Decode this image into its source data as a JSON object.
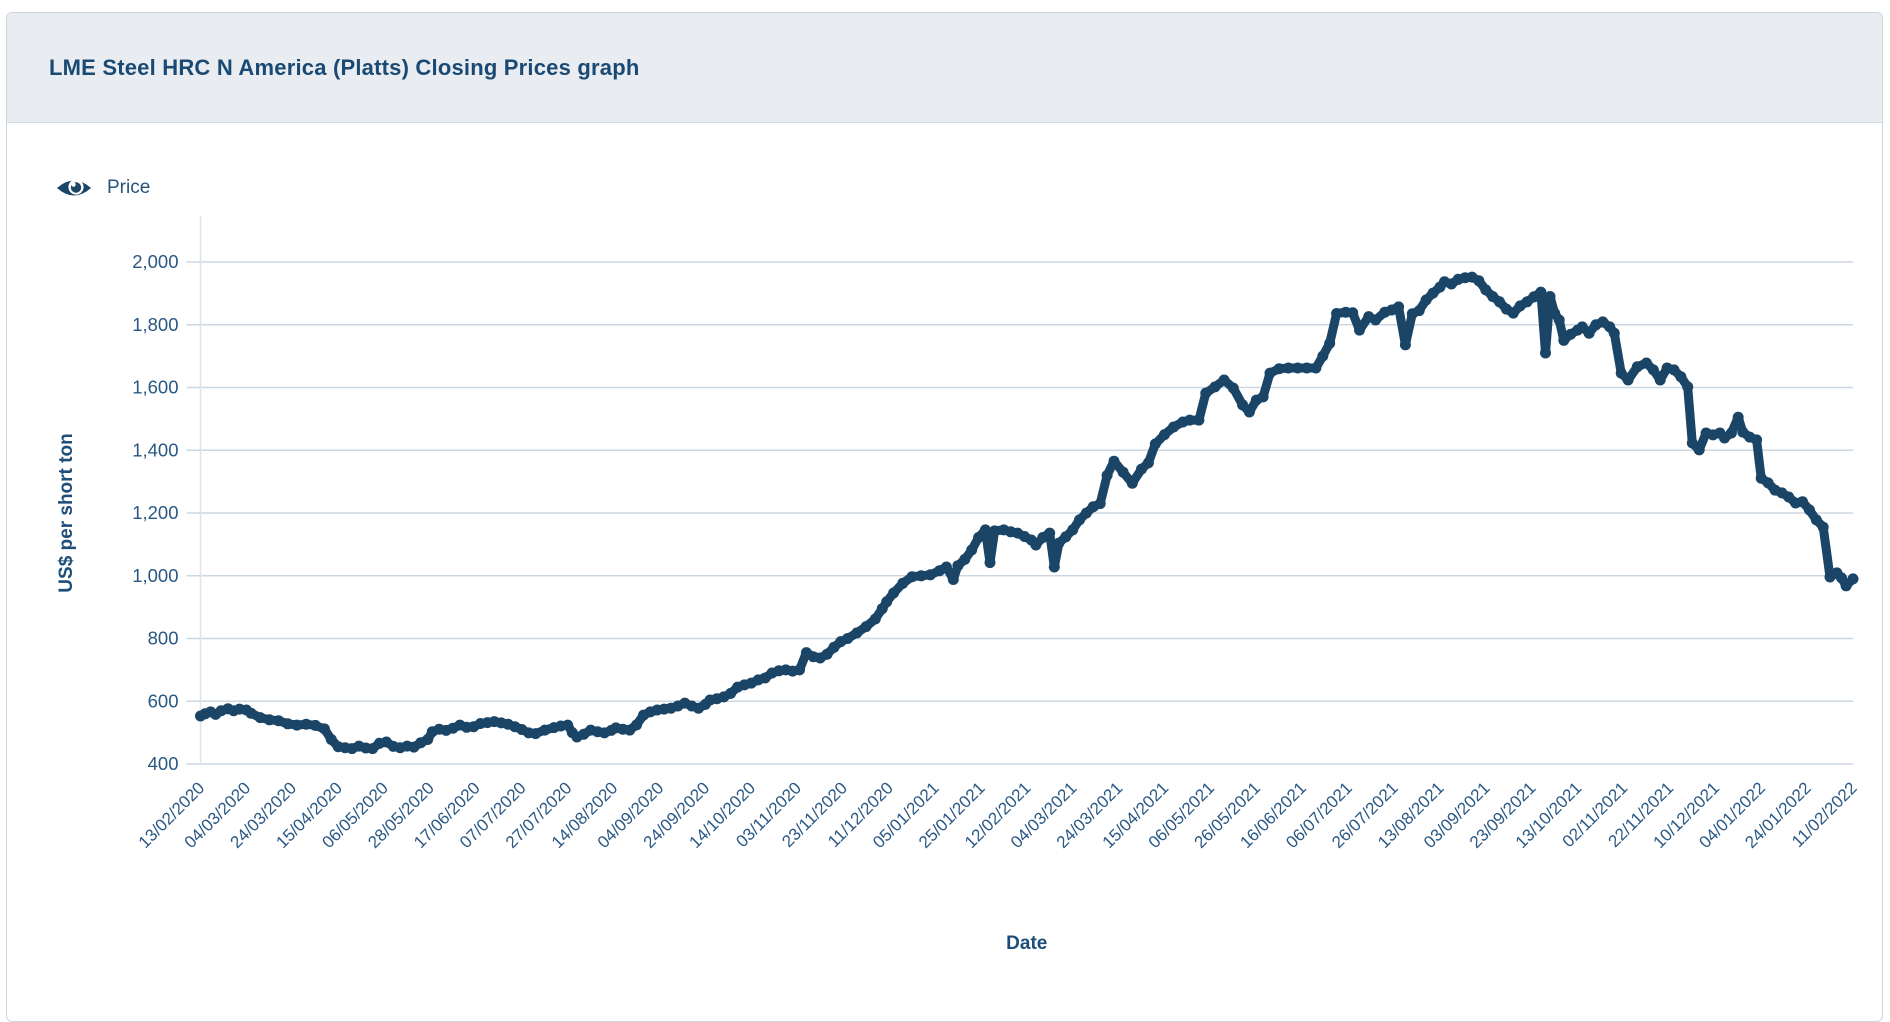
{
  "header": {
    "title": "LME Steel HRC N America (Platts) Closing Prices graph"
  },
  "legend": {
    "items": [
      {
        "label": "Price",
        "icon": "eye-icon",
        "visible": true
      }
    ]
  },
  "colors": {
    "series": "#1b4567",
    "title": "#1a4a73",
    "tick_label": "#2a5884",
    "axis_title": "#1d4d78",
    "legend_text": "#27547e",
    "gridline": "#cdd7e1",
    "axis_line": "#e2e4e6",
    "header_bg": "#e9edf1",
    "panel_border": "#ccd6df"
  },
  "chart_data": {
    "type": "line",
    "title": "LME Steel HRC N America (Platts) Closing Prices",
    "xlabel": "Date",
    "ylabel": "US$ per short ton",
    "ylim": [
      400,
      2000
    ],
    "x_range": [
      0,
      36
    ],
    "grid": "horizontal",
    "legend_position": "top-left",
    "y_ticks": [
      {
        "value": 400,
        "label": "400"
      },
      {
        "value": 600,
        "label": "600"
      },
      {
        "value": 800,
        "label": "800"
      },
      {
        "value": 1000,
        "label": "1,000"
      },
      {
        "value": 1200,
        "label": "1,200"
      },
      {
        "value": 1400,
        "label": "1,400"
      },
      {
        "value": 1600,
        "label": "1,600"
      },
      {
        "value": 1800,
        "label": "1,800"
      },
      {
        "value": 2000,
        "label": "2,000"
      }
    ],
    "x_tick_labels": [
      "13/02/2020",
      "04/03/2020",
      "24/03/2020",
      "15/04/2020",
      "06/05/2020",
      "28/05/2020",
      "17/06/2020",
      "07/07/2020",
      "27/07/2020",
      "14/08/2020",
      "04/09/2020",
      "24/09/2020",
      "14/10/2020",
      "03/11/2020",
      "23/11/2020",
      "11/12/2020",
      "05/01/2021",
      "25/01/2021",
      "12/02/2021",
      "04/03/2021",
      "24/03/2021",
      "15/04/2021",
      "06/05/2021",
      "26/05/2021",
      "16/06/2021",
      "06/07/2021",
      "26/07/2021",
      "13/08/2021",
      "03/09/2021",
      "23/09/2021",
      "13/10/2021",
      "02/11/2021",
      "22/11/2021",
      "10/12/2021",
      "04/01/2022",
      "24/01/2022",
      "11/02/2022"
    ],
    "series": [
      {
        "name": "Price",
        "color": "#1b4567",
        "marker": "circle",
        "points": [
          [
            0,
            553
          ],
          [
            0.1,
            560
          ],
          [
            0.22,
            566
          ],
          [
            0.33,
            558
          ],
          [
            0.45,
            570
          ],
          [
            0.6,
            576
          ],
          [
            0.72,
            570
          ],
          [
            0.85,
            575
          ],
          [
            1,
            572
          ],
          [
            1.1,
            562
          ],
          [
            1.3,
            548
          ],
          [
            1.5,
            541
          ],
          [
            1.7,
            538
          ],
          [
            1.9,
            528
          ],
          [
            2.1,
            524
          ],
          [
            2.3,
            527
          ],
          [
            2.5,
            523
          ],
          [
            2.7,
            512
          ],
          [
            2.85,
            478
          ],
          [
            3,
            455
          ],
          [
            3.15,
            452
          ],
          [
            3.3,
            449
          ],
          [
            3.45,
            457
          ],
          [
            3.6,
            451
          ],
          [
            3.75,
            449
          ],
          [
            3.9,
            466
          ],
          [
            4.05,
            470
          ],
          [
            4.2,
            456
          ],
          [
            4.35,
            452
          ],
          [
            4.5,
            457
          ],
          [
            4.65,
            454
          ],
          [
            4.8,
            468
          ],
          [
            4.95,
            478
          ],
          [
            5.05,
            503
          ],
          [
            5.2,
            511
          ],
          [
            5.35,
            507
          ],
          [
            5.5,
            514
          ],
          [
            5.65,
            524
          ],
          [
            5.8,
            517
          ],
          [
            5.95,
            519
          ],
          [
            6.1,
            529
          ],
          [
            6.25,
            532
          ],
          [
            6.4,
            535
          ],
          [
            6.55,
            531
          ],
          [
            6.7,
            527
          ],
          [
            6.85,
            519
          ],
          [
            7,
            510
          ],
          [
            7.15,
            499
          ],
          [
            7.3,
            497
          ],
          [
            7.5,
            508
          ],
          [
            7.7,
            516
          ],
          [
            7.85,
            521
          ],
          [
            8,
            524
          ],
          [
            8.1,
            500
          ],
          [
            8.2,
            486
          ],
          [
            8.35,
            495
          ],
          [
            8.5,
            508
          ],
          [
            8.65,
            503
          ],
          [
            8.8,
            499
          ],
          [
            8.95,
            507
          ],
          [
            9.05,
            515
          ],
          [
            9.2,
            511
          ],
          [
            9.35,
            508
          ],
          [
            9.5,
            525
          ],
          [
            9.65,
            556
          ],
          [
            9.8,
            566
          ],
          [
            9.95,
            572
          ],
          [
            10.1,
            575
          ],
          [
            10.25,
            578
          ],
          [
            10.4,
            585
          ],
          [
            10.55,
            594
          ],
          [
            10.7,
            585
          ],
          [
            10.85,
            578
          ],
          [
            11,
            590
          ],
          [
            11.1,
            604
          ],
          [
            11.25,
            608
          ],
          [
            11.4,
            614
          ],
          [
            11.55,
            625
          ],
          [
            11.7,
            645
          ],
          [
            11.85,
            652
          ],
          [
            12,
            658
          ],
          [
            12.15,
            668
          ],
          [
            12.3,
            674
          ],
          [
            12.45,
            690
          ],
          [
            12.6,
            697
          ],
          [
            12.75,
            700
          ],
          [
            12.9,
            696
          ],
          [
            13.05,
            700
          ],
          [
            13.2,
            755
          ],
          [
            13.35,
            742
          ],
          [
            13.5,
            738
          ],
          [
            13.65,
            750
          ],
          [
            13.8,
            772
          ],
          [
            13.95,
            790
          ],
          [
            14.1,
            800
          ],
          [
            14.3,
            818
          ],
          [
            14.5,
            838
          ],
          [
            14.7,
            862
          ],
          [
            14.85,
            895
          ],
          [
            14.95,
            917
          ],
          [
            15.1,
            945
          ],
          [
            15.3,
            976
          ],
          [
            15.5,
            997
          ],
          [
            15.7,
            1000
          ],
          [
            15.9,
            1003
          ],
          [
            16.1,
            1016
          ],
          [
            16.25,
            1028
          ],
          [
            16.4,
            988
          ],
          [
            16.5,
            1032
          ],
          [
            16.65,
            1052
          ],
          [
            16.8,
            1082
          ],
          [
            16.95,
            1122
          ],
          [
            17.1,
            1146
          ],
          [
            17.2,
            1042
          ],
          [
            17.3,
            1143
          ],
          [
            17.5,
            1146
          ],
          [
            17.65,
            1140
          ],
          [
            17.8,
            1136
          ],
          [
            17.95,
            1125
          ],
          [
            18.1,
            1114
          ],
          [
            18.2,
            1098
          ],
          [
            18.35,
            1122
          ],
          [
            18.5,
            1136
          ],
          [
            18.6,
            1028
          ],
          [
            18.7,
            1104
          ],
          [
            18.85,
            1124
          ],
          [
            19,
            1146
          ],
          [
            19.15,
            1178
          ],
          [
            19.3,
            1200
          ],
          [
            19.45,
            1220
          ],
          [
            19.6,
            1230
          ],
          [
            19.75,
            1320
          ],
          [
            19.9,
            1365
          ],
          [
            20.1,
            1330
          ],
          [
            20.3,
            1295
          ],
          [
            20.5,
            1340
          ],
          [
            20.65,
            1360
          ],
          [
            20.8,
            1420
          ],
          [
            21,
            1450
          ],
          [
            21.2,
            1474
          ],
          [
            21.4,
            1490
          ],
          [
            21.55,
            1496
          ],
          [
            21.75,
            1496
          ],
          [
            21.9,
            1582
          ],
          [
            22.1,
            1602
          ],
          [
            22.3,
            1624
          ],
          [
            22.5,
            1598
          ],
          [
            22.7,
            1545
          ],
          [
            22.85,
            1522
          ],
          [
            23,
            1560
          ],
          [
            23.15,
            1570
          ],
          [
            23.3,
            1646
          ],
          [
            23.5,
            1660
          ],
          [
            23.7,
            1662
          ],
          [
            23.9,
            1662
          ],
          [
            24.1,
            1662
          ],
          [
            24.3,
            1662
          ],
          [
            24.45,
            1700
          ],
          [
            24.6,
            1741
          ],
          [
            24.75,
            1836
          ],
          [
            24.95,
            1840
          ],
          [
            25.1,
            1838
          ],
          [
            25.25,
            1783
          ],
          [
            25.45,
            1826
          ],
          [
            25.6,
            1815
          ],
          [
            25.8,
            1840
          ],
          [
            25.95,
            1847
          ],
          [
            26.1,
            1857
          ],
          [
            26.25,
            1736
          ],
          [
            26.4,
            1835
          ],
          [
            26.55,
            1845
          ],
          [
            26.7,
            1879
          ],
          [
            26.85,
            1901
          ],
          [
            27,
            1920
          ],
          [
            27.1,
            1937
          ],
          [
            27.25,
            1930
          ],
          [
            27.4,
            1945
          ],
          [
            27.55,
            1950
          ],
          [
            27.7,
            1952
          ],
          [
            27.85,
            1940
          ],
          [
            28,
            1911
          ],
          [
            28.15,
            1890
          ],
          [
            28.3,
            1873
          ],
          [
            28.45,
            1850
          ],
          [
            28.6,
            1837
          ],
          [
            28.75,
            1860
          ],
          [
            28.9,
            1873
          ],
          [
            29.05,
            1889
          ],
          [
            29.2,
            1904
          ],
          [
            29.3,
            1710
          ],
          [
            29.4,
            1890
          ],
          [
            29.5,
            1837
          ],
          [
            29.6,
            1815
          ],
          [
            29.7,
            1750
          ],
          [
            29.85,
            1770
          ],
          [
            30,
            1783
          ],
          [
            30.1,
            1793
          ],
          [
            30.25,
            1773
          ],
          [
            30.4,
            1800
          ],
          [
            30.55,
            1809
          ],
          [
            30.7,
            1793
          ],
          [
            30.8,
            1773
          ],
          [
            30.95,
            1646
          ],
          [
            31.1,
            1624
          ],
          [
            31.3,
            1666
          ],
          [
            31.5,
            1678
          ],
          [
            31.65,
            1656
          ],
          [
            31.8,
            1624
          ],
          [
            31.95,
            1662
          ],
          [
            32.1,
            1656
          ],
          [
            32.25,
            1634
          ],
          [
            32.4,
            1602
          ],
          [
            32.5,
            1423
          ],
          [
            32.65,
            1401
          ],
          [
            32.8,
            1455
          ],
          [
            32.95,
            1449
          ],
          [
            33.1,
            1455
          ],
          [
            33.2,
            1439
          ],
          [
            33.35,
            1455
          ],
          [
            33.5,
            1505
          ],
          [
            33.6,
            1458
          ],
          [
            33.75,
            1442
          ],
          [
            33.9,
            1433
          ],
          [
            34,
            1311
          ],
          [
            34.15,
            1296
          ],
          [
            34.3,
            1273
          ],
          [
            34.45,
            1264
          ],
          [
            34.6,
            1251
          ],
          [
            34.75,
            1232
          ],
          [
            34.9,
            1236
          ],
          [
            35.05,
            1210
          ],
          [
            35.2,
            1178
          ],
          [
            35.35,
            1155
          ],
          [
            35.5,
            996
          ],
          [
            35.65,
            1009
          ],
          [
            35.75,
            993
          ],
          [
            35.85,
            968
          ],
          [
            36,
            990
          ]
        ]
      }
    ]
  }
}
